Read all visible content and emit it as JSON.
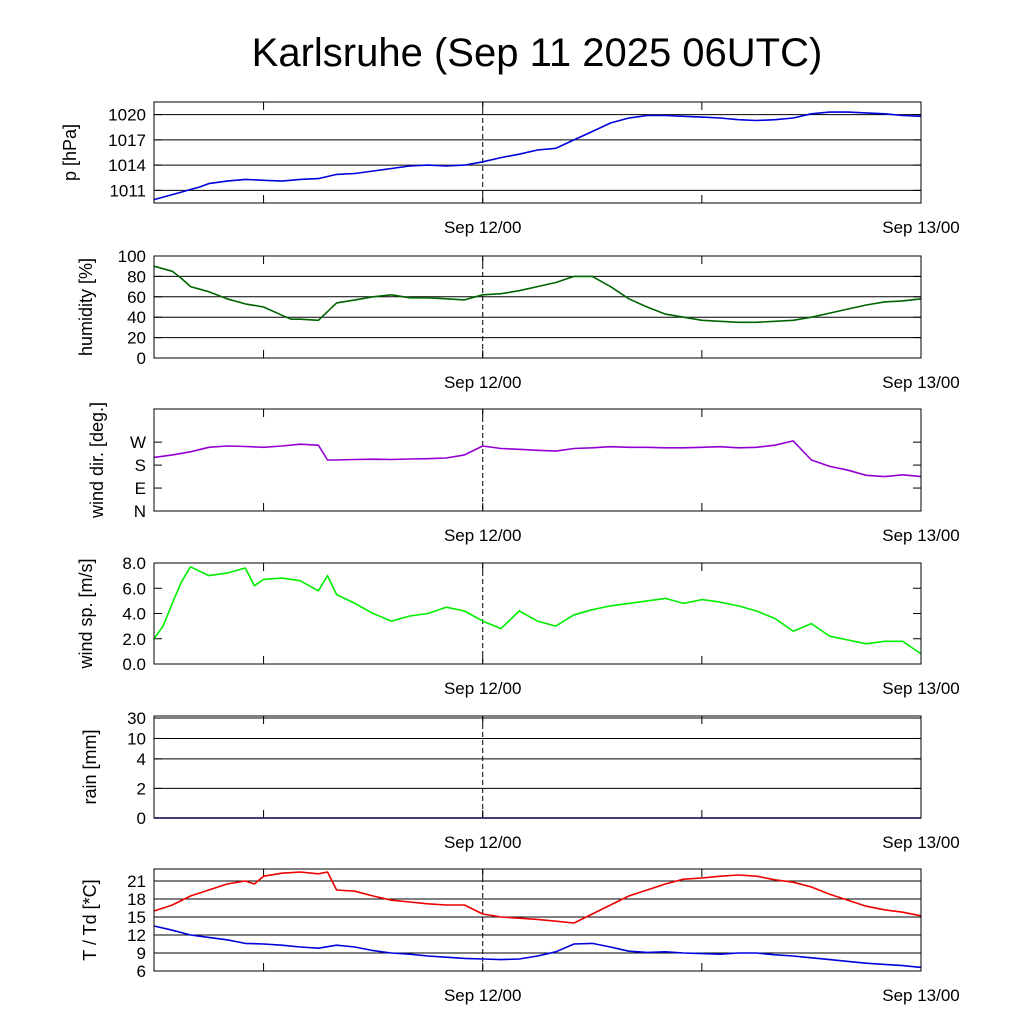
{
  "title": "Karlsruhe (Sep 11 2025 06UTC)",
  "colors": {
    "pressure": "#0000dd",
    "humidity": "#006400",
    "wind_dir": "#9400d3",
    "wind_speed": "#00ee00",
    "rain": "#0000dd",
    "temperature": "#ee0000",
    "dewpoint": "#0000dd"
  },
  "chart_data": [
    {
      "id": "pressure",
      "type": "line",
      "ylabel": "p [hPa]",
      "ylim": [
        1009.5,
        1021.5
      ],
      "yticks": [
        1011,
        1014,
        1017,
        1020
      ],
      "ytick_labels": [
        "1011",
        "1014",
        "1017",
        "1020"
      ],
      "xlim": [
        0,
        42
      ],
      "xticks_major": [
        18,
        42
      ],
      "xtick_labels": [
        "Sep 12/00",
        "Sep 13/00"
      ],
      "xticks_minor": [
        6,
        30
      ],
      "grid": "horizontal",
      "vline": 18,
      "series": [
        {
          "name": "pressure",
          "x": [
            0,
            0.5,
            1,
            1.5,
            2,
            2.5,
            3,
            4,
            5,
            6,
            7,
            8,
            9,
            10,
            11,
            12,
            13,
            14,
            15,
            16,
            17,
            18,
            19,
            20,
            21,
            22,
            23,
            24,
            25,
            26,
            27,
            28,
            29,
            30,
            31,
            32,
            33,
            34,
            35,
            36,
            37,
            38,
            39,
            40,
            41,
            42
          ],
          "values": [
            1009.9,
            1010.2,
            1010.5,
            1010.8,
            1011.1,
            1011.4,
            1011.8,
            1012.1,
            1012.3,
            1012.2,
            1012.1,
            1012.3,
            1012.4,
            1012.9,
            1013.0,
            1013.3,
            1013.6,
            1013.9,
            1014.0,
            1013.9,
            1014.0,
            1014.4,
            1014.9,
            1015.3,
            1015.8,
            1016.0,
            1017.0,
            1018.0,
            1019.0,
            1019.6,
            1019.9,
            1019.9,
            1019.8,
            1019.7,
            1019.6,
            1019.4,
            1019.3,
            1019.4,
            1019.6,
            1020.1,
            1020.3,
            1020.3,
            1020.2,
            1020.1,
            1019.9,
            1019.8
          ]
        }
      ]
    },
    {
      "id": "humidity",
      "type": "line",
      "ylabel": "humidity [%]",
      "ylim": [
        0,
        100
      ],
      "yticks": [
        0,
        20,
        40,
        60,
        80,
        100
      ],
      "ytick_labels": [
        "0",
        "20",
        "40",
        "60",
        "80",
        "100"
      ],
      "xlim": [
        0,
        42
      ],
      "xticks_major": [
        18,
        42
      ],
      "xtick_labels": [
        "Sep 12/00",
        "Sep 13/00"
      ],
      "xticks_minor": [
        6,
        30
      ],
      "grid": "horizontal",
      "vline": 18,
      "series": [
        {
          "name": "humidity",
          "x": [
            0,
            1,
            1.5,
            2,
            3,
            4,
            5,
            6,
            7,
            7.5,
            8,
            9,
            10,
            11,
            12,
            13,
            14,
            15,
            16,
            17,
            18,
            19,
            20,
            21,
            22,
            23,
            24,
            25,
            26,
            27,
            28,
            29,
            30,
            31,
            32,
            33,
            34,
            35,
            36,
            37,
            38,
            39,
            40,
            41,
            42
          ],
          "values": [
            90,
            85,
            78,
            70,
            65,
            58,
            53,
            50,
            42,
            38,
            38,
            37,
            54,
            57,
            60,
            62,
            59,
            59,
            58,
            57,
            62,
            63,
            66,
            70,
            74,
            80,
            80,
            70,
            58,
            50,
            43,
            40,
            37,
            36,
            35,
            35,
            36,
            37,
            40,
            44,
            48,
            52,
            55,
            56,
            58
          ]
        }
      ]
    },
    {
      "id": "wind_dir",
      "type": "line",
      "ylabel": "wind dir. [deg.]",
      "ylim": [
        0,
        400
      ],
      "yticks": [
        0,
        90,
        180,
        270
      ],
      "ytick_labels": [
        "N",
        "E",
        "S",
        "W"
      ],
      "xlim": [
        0,
        42
      ],
      "xticks_major": [
        18,
        42
      ],
      "xtick_labels": [
        "Sep 12/00",
        "Sep 13/00"
      ],
      "xticks_minor": [
        6,
        30
      ],
      "grid": "none",
      "vline": 18,
      "series": [
        {
          "name": "wind direction",
          "x": [
            0,
            1,
            2,
            3,
            4,
            5,
            6,
            7,
            8,
            9,
            9.5,
            10,
            11,
            12,
            13,
            14,
            15,
            16,
            17,
            18,
            19,
            20,
            21,
            22,
            23,
            24,
            25,
            26,
            27,
            28,
            29,
            30,
            31,
            32,
            33,
            34,
            35,
            36,
            37,
            38,
            39,
            40,
            41,
            42
          ],
          "values": [
            210,
            220,
            232,
            250,
            255,
            253,
            250,
            255,
            262,
            258,
            200,
            200,
            202,
            203,
            202,
            204,
            205,
            208,
            220,
            255,
            245,
            242,
            238,
            235,
            245,
            248,
            252,
            250,
            250,
            248,
            248,
            250,
            252,
            248,
            250,
            258,
            275,
            200,
            175,
            160,
            140,
            135,
            142,
            135
          ]
        }
      ]
    },
    {
      "id": "wind_speed",
      "type": "line",
      "ylabel": "wind sp. [m/s]",
      "ylim": [
        0,
        8
      ],
      "yticks": [
        0,
        2,
        4,
        6,
        8
      ],
      "ytick_labels": [
        "0.0",
        "2.0",
        "4.0",
        "6.0",
        "8.0"
      ],
      "xlim": [
        0,
        42
      ],
      "xticks_major": [
        18,
        42
      ],
      "xtick_labels": [
        "Sep 12/00",
        "Sep 13/00"
      ],
      "xticks_minor": [
        6,
        30
      ],
      "grid": "none",
      "vline": 18,
      "series": [
        {
          "name": "wind speed",
          "x": [
            0,
            0.5,
            1,
            1.5,
            2,
            3,
            4,
            5,
            5.5,
            6,
            7,
            8,
            9,
            9.5,
            10,
            11,
            12,
            13,
            14,
            15,
            16,
            17,
            18,
            19,
            20,
            21,
            22,
            23,
            24,
            25,
            26,
            27,
            28,
            29,
            30,
            31,
            32,
            33,
            34,
            35,
            36,
            37,
            38,
            39,
            40,
            41,
            42
          ],
          "values": [
            2.0,
            3.0,
            4.8,
            6.5,
            7.7,
            7.0,
            7.2,
            7.6,
            6.2,
            6.7,
            6.8,
            6.6,
            5.8,
            7.0,
            5.5,
            4.8,
            4.0,
            3.4,
            3.8,
            4.0,
            4.5,
            4.2,
            3.4,
            2.8,
            4.2,
            3.4,
            3.0,
            3.9,
            4.3,
            4.6,
            4.8,
            5.0,
            5.2,
            4.8,
            5.1,
            4.9,
            4.6,
            4.2,
            3.6,
            2.6,
            3.2,
            2.2,
            1.9,
            1.6,
            1.8,
            1.8,
            0.8
          ]
        }
      ]
    },
    {
      "id": "rain",
      "type": "line",
      "ylabel": "rain [mm]",
      "ylim": [
        0,
        30
      ],
      "yticks": [
        0,
        2,
        4,
        10,
        30
      ],
      "ytick_labels": [
        "0",
        "2",
        "4",
        "10",
        "30"
      ],
      "scale": "rain-nonlinear",
      "xlim": [
        0,
        42
      ],
      "xticks_major": [
        18,
        42
      ],
      "xtick_labels": [
        "Sep 12/00",
        "Sep 13/00"
      ],
      "xticks_minor": [
        6,
        30
      ],
      "grid": "horizontal",
      "vline": 18,
      "series": [
        {
          "name": "rain",
          "x": [
            0,
            42
          ],
          "values": [
            0,
            0
          ]
        }
      ]
    },
    {
      "id": "temperature",
      "type": "line",
      "ylabel": "T / Td [*C]",
      "ylim": [
        6,
        23
      ],
      "yticks": [
        6,
        9,
        12,
        15,
        18,
        21
      ],
      "ytick_labels": [
        "6",
        "9",
        "12",
        "15",
        "18",
        "21"
      ],
      "xlim": [
        0,
        42
      ],
      "xticks_major": [
        18,
        42
      ],
      "xtick_labels": [
        "Sep 12/00",
        "Sep 13/00"
      ],
      "xticks_minor": [
        6,
        30
      ],
      "grid": "horizontal",
      "vline": 18,
      "series": [
        {
          "name": "T",
          "x": [
            0,
            1,
            2,
            3,
            4,
            5,
            5.5,
            6,
            7,
            8,
            9,
            9.5,
            10,
            11,
            12,
            13,
            14,
            15,
            16,
            17,
            18,
            19,
            20,
            21,
            22,
            23,
            24,
            25,
            26,
            27,
            28,
            29,
            30,
            31,
            32,
            33,
            34,
            35,
            36,
            37,
            38,
            39,
            40,
            41,
            42
          ],
          "values": [
            16,
            17,
            18.5,
            19.5,
            20.5,
            21,
            20.5,
            21.8,
            22.3,
            22.5,
            22.2,
            22.5,
            19.5,
            19.3,
            18.5,
            17.8,
            17.5,
            17.2,
            17.0,
            17.0,
            15.5,
            15.0,
            14.8,
            14.6,
            14.3,
            14.0,
            15.5,
            17.0,
            18.5,
            19.5,
            20.5,
            21.3,
            21.5,
            21.8,
            22.0,
            21.8,
            21.2,
            20.8,
            20.0,
            18.8,
            17.8,
            16.8,
            16.2,
            15.8,
            15.2
          ]
        },
        {
          "name": "Td",
          "x": [
            0,
            1,
            2,
            3,
            4,
            5,
            6,
            7,
            8,
            9,
            10,
            11,
            12,
            13,
            14,
            15,
            16,
            17,
            18,
            19,
            20,
            21,
            22,
            23,
            24,
            25,
            26,
            27,
            28,
            29,
            30,
            31,
            32,
            33,
            34,
            35,
            36,
            37,
            38,
            39,
            40,
            41,
            42
          ],
          "values": [
            13.5,
            12.8,
            12.0,
            11.6,
            11.2,
            10.6,
            10.5,
            10.3,
            10.0,
            9.8,
            10.3,
            10.0,
            9.4,
            9.0,
            8.8,
            8.5,
            8.3,
            8.1,
            8.0,
            7.9,
            8.0,
            8.5,
            9.2,
            10.5,
            10.6,
            10.0,
            9.3,
            9.1,
            9.2,
            9.0,
            8.9,
            8.8,
            9.0,
            9.0,
            8.7,
            8.5,
            8.2,
            7.9,
            7.6,
            7.3,
            7.1,
            6.9,
            6.6
          ]
        }
      ]
    }
  ]
}
